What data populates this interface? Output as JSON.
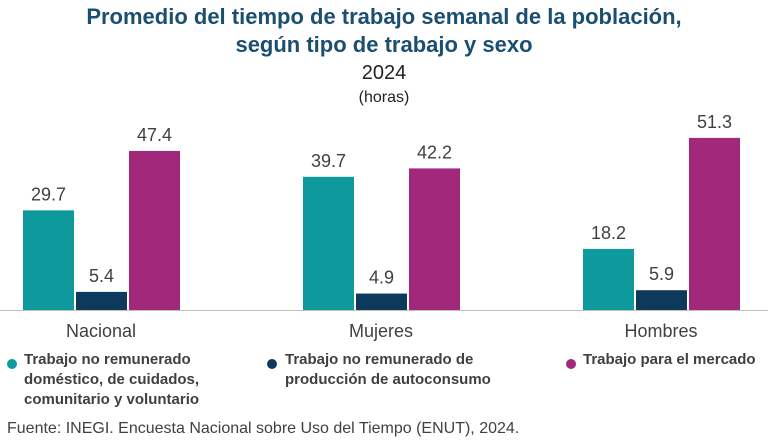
{
  "chart_data": {
    "type": "bar",
    "title": "Promedio del tiempo de trabajo semanal de la población, según tipo de trabajo y sexo",
    "title_line1": "Promedio del tiempo de trabajo semanal de la población,",
    "title_line2": "según tipo de trabajo y sexo",
    "subtitle": "2024",
    "unit": "(horas)",
    "categories": [
      "Nacional",
      "Mujeres",
      "Hombres"
    ],
    "series": [
      {
        "name": "Trabajo no remunerado doméstico, de cuidados, comunitario y voluntario",
        "color": "#0e9a9c",
        "values": [
          29.7,
          39.7,
          18.2
        ],
        "labels": [
          "29.7",
          "39.7",
          "18.2"
        ]
      },
      {
        "name": "Trabajo no remunerado de producción de autoconsumo",
        "color": "#0d3a5c",
        "values": [
          5.4,
          4.9,
          5.9
        ],
        "labels": [
          "5.4",
          "4.9",
          "5.9"
        ]
      },
      {
        "name": "Trabajo para el mercado",
        "color": "#a1287a",
        "values": [
          47.4,
          42.2,
          51.3
        ],
        "labels": [
          "47.4",
          "42.2",
          "51.3"
        ]
      }
    ],
    "legend_placement": "bottom",
    "grid": false
  },
  "legend": {
    "s0_lines": [
      "Trabajo no remunerado",
      "doméstico, de cuidados,",
      "comunitario y voluntario"
    ],
    "s1_lines": [
      "Trabajo no remunerado de",
      "producción de autoconsumo"
    ],
    "s2_lines": [
      "Trabajo para el mercado"
    ]
  },
  "source": "Fuente: INEGI. Encuesta Nacional sobre Uso del Tiempo (ENUT), 2024."
}
